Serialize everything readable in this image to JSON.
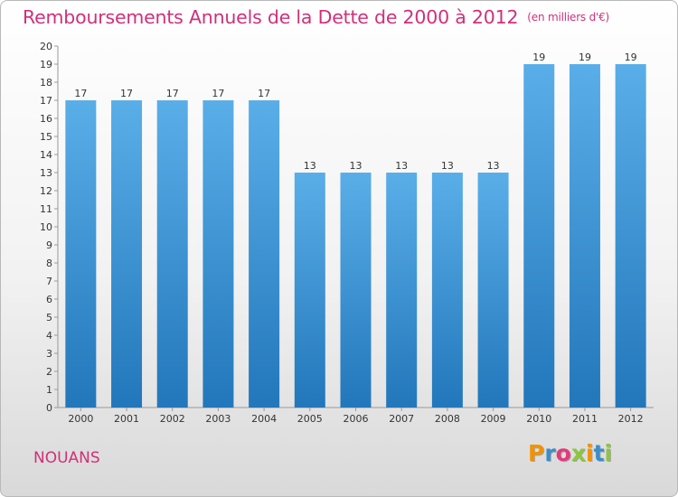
{
  "header": {
    "title": "Remboursements Annuels de la Dette de 2000 à 2012",
    "unit": "(en milliers d'€)"
  },
  "footer": {
    "commune": "NOUANS",
    "logo_text": "Proxiti"
  },
  "colors": {
    "title": "#d0307a",
    "bar_top": "#5aaee8",
    "bar_bottom": "#2277bb",
    "logo": [
      "#f39200",
      "#3c8dc8",
      "#e23a7a",
      "#8cc63f",
      "#f39200",
      "#3c8dc8",
      "#8cc63f"
    ]
  },
  "chart_data": {
    "type": "bar",
    "categories": [
      "2000",
      "2001",
      "2002",
      "2003",
      "2004",
      "2005",
      "2006",
      "2007",
      "2008",
      "2009",
      "2010",
      "2011",
      "2012"
    ],
    "values": [
      17,
      17,
      17,
      17,
      17,
      13,
      13,
      13,
      13,
      13,
      19,
      19,
      19
    ],
    "ylim": [
      0,
      20
    ],
    "yticks": [
      0,
      1,
      2,
      3,
      4,
      5,
      6,
      7,
      8,
      9,
      10,
      11,
      12,
      13,
      14,
      15,
      16,
      17,
      18,
      19,
      20
    ],
    "grid": false,
    "legend": "none"
  }
}
